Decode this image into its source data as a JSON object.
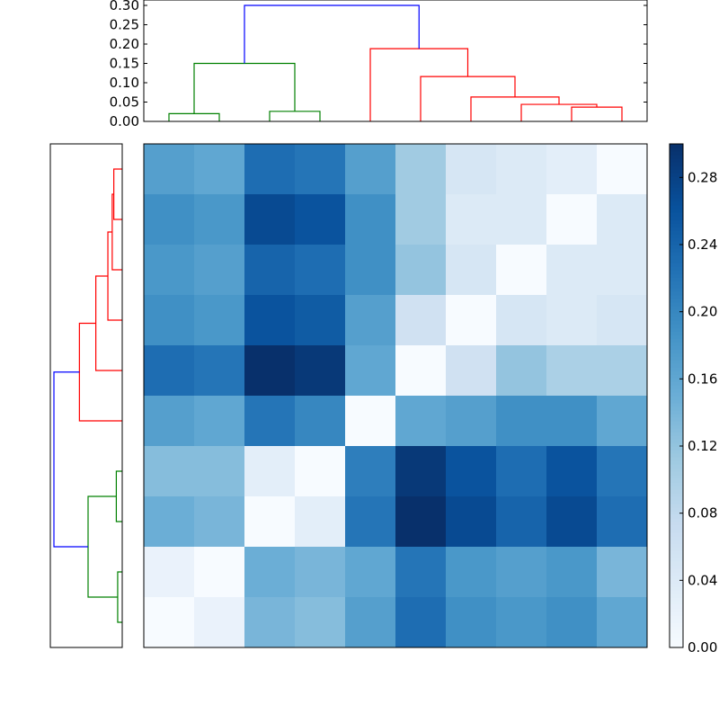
{
  "chart_data": [
    {
      "type": "heatmap",
      "colormap": "Blues",
      "clim": [
        0,
        0.3
      ],
      "rows": 10,
      "cols": 10,
      "values": [
        [
          0.17,
          0.16,
          0.23,
          0.22,
          0.17,
          0.11,
          0.05,
          0.04,
          0.03,
          0.0
        ],
        [
          0.19,
          0.18,
          0.27,
          0.26,
          0.19,
          0.11,
          0.04,
          0.04,
          0.0,
          0.04
        ],
        [
          0.18,
          0.17,
          0.24,
          0.23,
          0.19,
          0.12,
          0.05,
          0.0,
          0.04,
          0.04
        ],
        [
          0.19,
          0.18,
          0.26,
          0.25,
          0.17,
          0.06,
          0.0,
          0.05,
          0.04,
          0.05
        ],
        [
          0.23,
          0.22,
          0.3,
          0.29,
          0.16,
          0.0,
          0.06,
          0.12,
          0.1,
          0.1
        ],
        [
          0.17,
          0.16,
          0.22,
          0.2,
          0.0,
          0.16,
          0.17,
          0.19,
          0.19,
          0.16
        ],
        [
          0.13,
          0.13,
          0.03,
          0.0,
          0.21,
          0.29,
          0.26,
          0.23,
          0.26,
          0.22
        ],
        [
          0.15,
          0.14,
          0.0,
          0.03,
          0.22,
          0.3,
          0.27,
          0.24,
          0.27,
          0.23
        ],
        [
          0.02,
          0.0,
          0.15,
          0.14,
          0.16,
          0.22,
          0.18,
          0.17,
          0.18,
          0.14
        ],
        [
          0.0,
          0.02,
          0.14,
          0.13,
          0.17,
          0.23,
          0.19,
          0.18,
          0.19,
          0.16
        ]
      ],
      "colorbar": {
        "ticks": [
          "0.00",
          "0.04",
          "0.08",
          "0.12",
          "0.16",
          "0.20",
          "0.24",
          "0.28"
        ]
      }
    },
    {
      "type": "dendrogram",
      "orientation": "top",
      "ylim": [
        0,
        0.3
      ],
      "yticks": [
        "0.00",
        "0.05",
        "0.10",
        "0.15",
        "0.20",
        "0.25",
        "0.30"
      ],
      "leaves": 10,
      "linkage": [
        [
          0,
          1,
          0.02,
          "#008000"
        ],
        [
          2,
          3,
          0.026,
          "#008000"
        ],
        [
          10,
          11,
          0.15,
          "#008000"
        ],
        [
          8,
          9,
          0.037,
          "#ff0000"
        ],
        [
          7,
          13,
          0.044,
          "#ff0000"
        ],
        [
          6,
          14,
          0.063,
          "#ff0000"
        ],
        [
          5,
          15,
          0.116,
          "#ff0000"
        ],
        [
          4,
          16,
          0.188,
          "#ff0000"
        ],
        [
          12,
          17,
          0.3,
          "#0000ff"
        ]
      ]
    },
    {
      "type": "dendrogram",
      "orientation": "left",
      "leaf_order": "reversed",
      "note_linkage": "same as top dendrogram"
    }
  ]
}
